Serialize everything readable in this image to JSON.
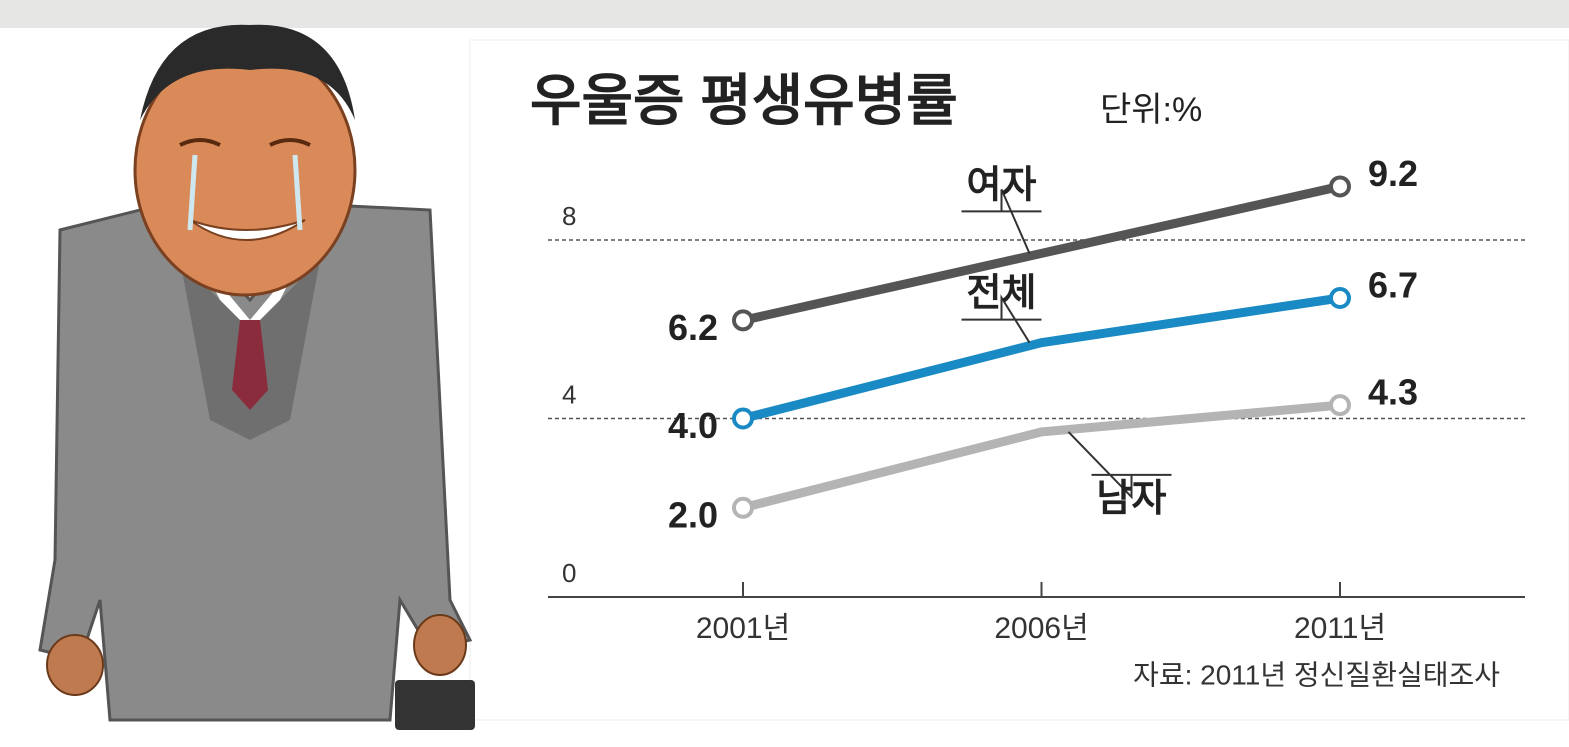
{
  "chart_data": {
    "type": "line",
    "title": "우울증 평생유병률",
    "subtitle": "단위:%",
    "source": "자료: 2011년 정신질환실태조사",
    "categories": [
      "2001년",
      "2006년",
      "2011년"
    ],
    "series": [
      {
        "name": "여자",
        "color": "#555555",
        "values": [
          6.2,
          7.7,
          9.2
        ],
        "value_labels": [
          "6.2",
          null,
          "9.2"
        ]
      },
      {
        "name": "전체",
        "color": "#1a8ac4",
        "values": [
          4.0,
          5.7,
          6.7
        ],
        "value_labels": [
          "4.0",
          null,
          "6.7"
        ]
      },
      {
        "name": "남자",
        "color": "#b4b4b4",
        "values": [
          2.0,
          3.7,
          4.3
        ],
        "value_labels": [
          "2.0",
          null,
          "4.3"
        ]
      }
    ],
    "ylim": [
      0,
      8
    ],
    "yticks": [
      0,
      4,
      8
    ],
    "grid": true
  }
}
